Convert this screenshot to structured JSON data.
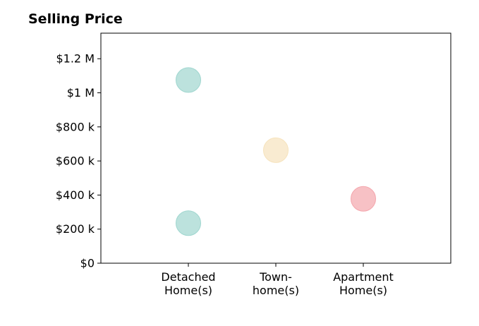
{
  "chart_data": {
    "type": "scatter",
    "title": "Selling Price",
    "xlabel": "",
    "ylabel": "",
    "categories": [
      [
        "Detached",
        "Home(s)"
      ],
      [
        "Town-",
        "home(s)"
      ],
      [
        "Apartment",
        "Home(s)"
      ]
    ],
    "xlim": [
      0,
      4
    ],
    "ylim": [
      0,
      1350000
    ],
    "yticks": [
      0,
      200000,
      400000,
      600000,
      800000,
      1000000,
      1200000
    ],
    "ytick_labels": [
      "$0",
      "$200 k",
      "$400 k",
      "$600 k",
      "$800 k",
      "$1 M",
      "$1.2 M"
    ],
    "grid": false,
    "points": [
      {
        "category": 0,
        "value": 1075000,
        "color": "#9fd6cf"
      },
      {
        "category": 0,
        "value": 235000,
        "color": "#9fd6cf"
      },
      {
        "category": 1,
        "value": 663000,
        "color": "#f6e3bd"
      },
      {
        "category": 2,
        "value": 378000,
        "color": "#f4a6ad"
      }
    ]
  }
}
